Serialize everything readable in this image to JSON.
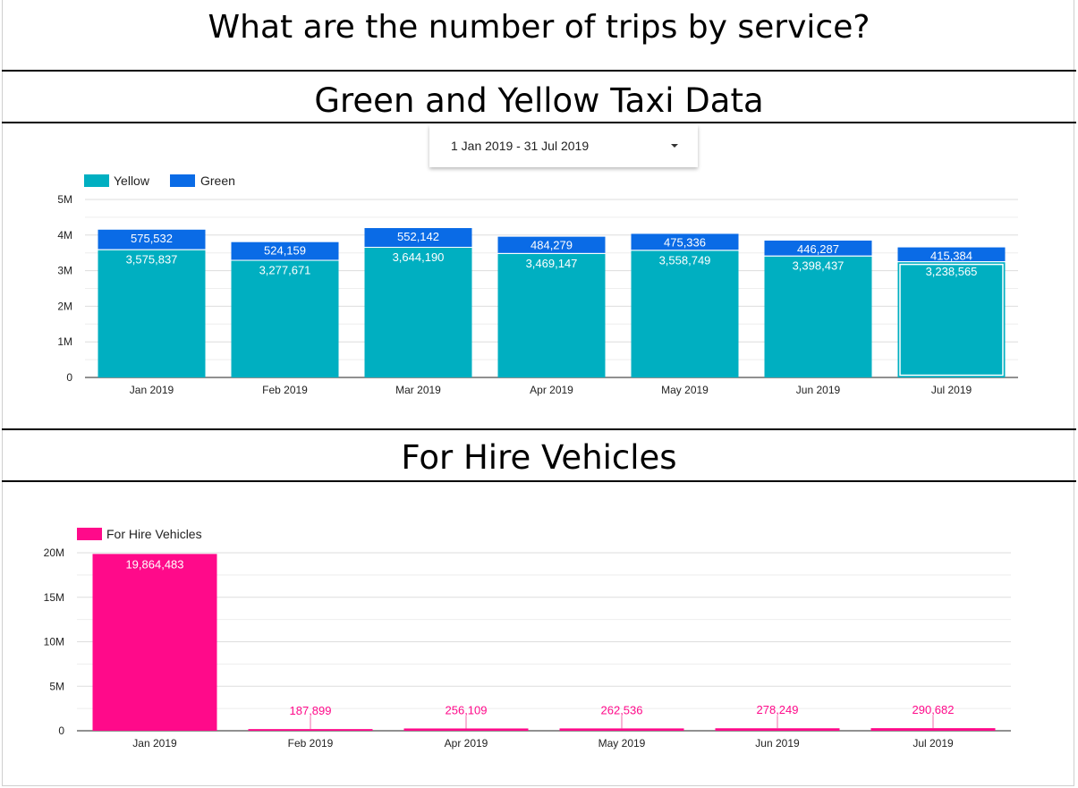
{
  "page": {
    "title": "What are the number of trips by service?",
    "section1_title": "Green and Yellow Taxi Data",
    "section2_title": "For Hire Vehicles"
  },
  "date_control": {
    "value": "1 Jan 2019 - 31 Jul 2019"
  },
  "colors": {
    "yellow": "#00AFC1",
    "green": "#0A6BE6",
    "fhv": "#FF0A8A",
    "grid": "#dddddd"
  },
  "chart_data": [
    {
      "type": "bar",
      "stacked": true,
      "categories": [
        "Jan 2019",
        "Feb 2019",
        "Mar 2019",
        "Apr 2019",
        "May 2019",
        "Jun 2019",
        "Jul 2019"
      ],
      "series": [
        {
          "name": "Yellow",
          "values": [
            3575837,
            3277671,
            3644190,
            3469147,
            3558749,
            3398437,
            3238565
          ],
          "labels": [
            "3,575,837",
            "3,277,671",
            "3,644,190",
            "3,469,147",
            "3,558,749",
            "3,398,437",
            "3,238,565"
          ]
        },
        {
          "name": "Green",
          "values": [
            575532,
            524159,
            552142,
            484279,
            475336,
            446287,
            415384
          ],
          "labels": [
            "575,532",
            "524,159",
            "552,142",
            "484,279",
            "475,336",
            "446,287",
            "415,384"
          ]
        }
      ],
      "ylim": [
        0,
        5000000
      ],
      "yticks": [
        0,
        1000000,
        2000000,
        3000000,
        4000000,
        5000000
      ],
      "ytick_labels": [
        "0",
        "1M",
        "2M",
        "3M",
        "4M",
        "5M"
      ],
      "grid": true,
      "legend": "top-left"
    },
    {
      "type": "bar",
      "categories": [
        "Jan 2019",
        "Feb 2019",
        "Apr 2019",
        "May 2019",
        "Jun 2019",
        "Jul 2019"
      ],
      "series": [
        {
          "name": "For Hire Vehicles",
          "values": [
            19864483,
            187899,
            256109,
            262536,
            278249,
            290682
          ],
          "labels": [
            "19,864,483",
            "187,899",
            "256,109",
            "262,536",
            "278,249",
            "290,682"
          ]
        }
      ],
      "ylim": [
        0,
        20000000
      ],
      "yticks": [
        0,
        5000000,
        10000000,
        15000000,
        20000000
      ],
      "ytick_labels": [
        "0",
        "5M",
        "10M",
        "15M",
        "20M"
      ],
      "grid": true,
      "legend": "top-left"
    }
  ]
}
